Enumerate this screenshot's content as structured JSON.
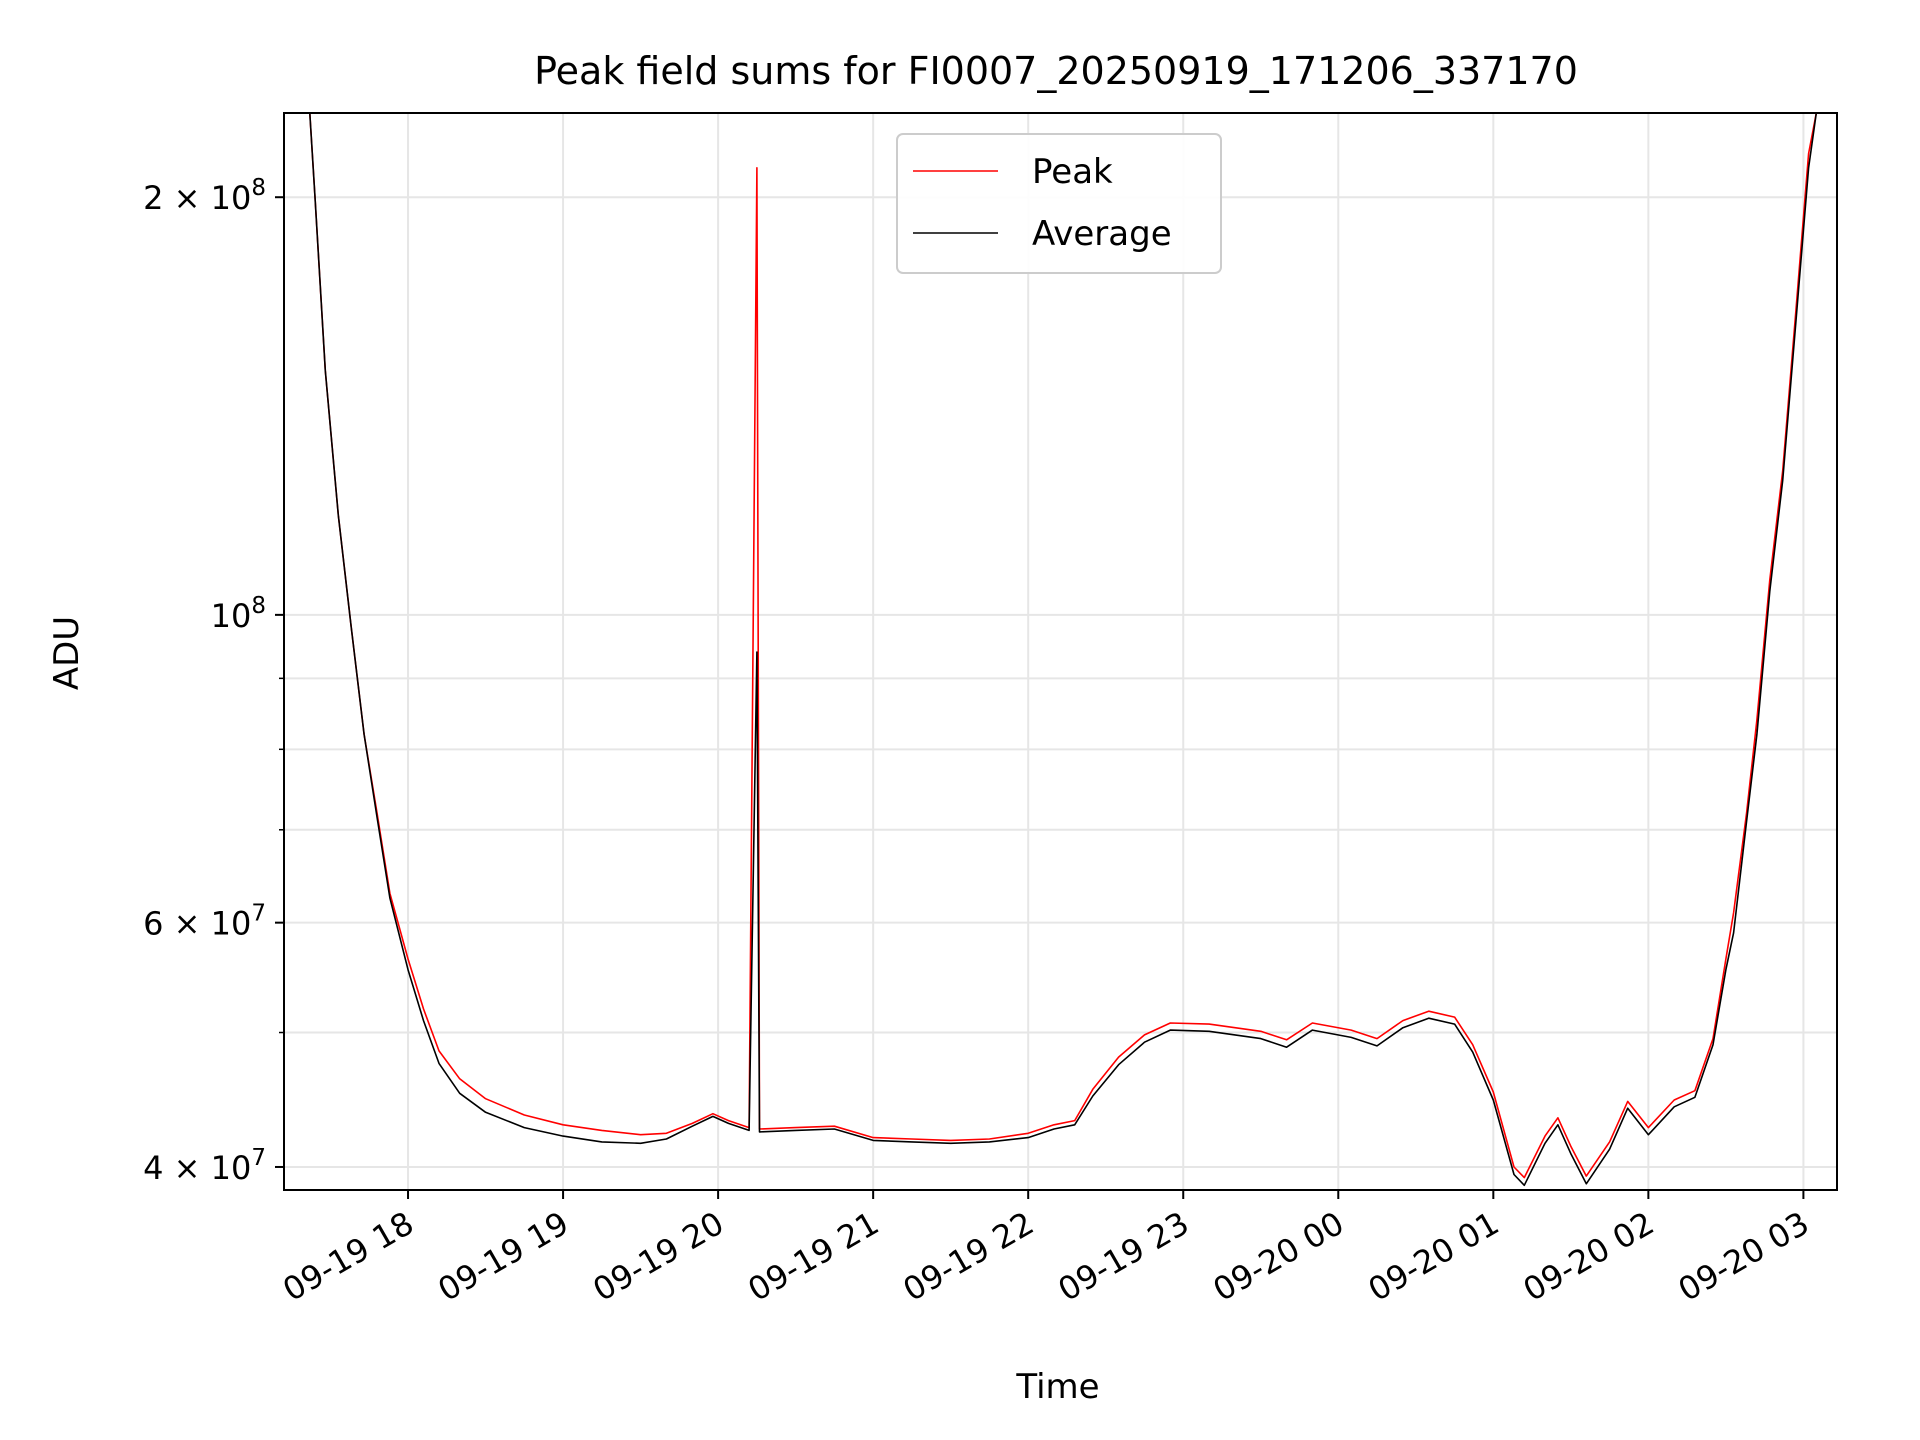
{
  "chart_data": {
    "type": "line",
    "title": "Peak field sums for FI0007_20250919_171206_337170",
    "xlabel": "Time",
    "ylabel": "ADU",
    "yscale": "log",
    "grid": true,
    "legend_position": "top-center",
    "x_range": [
      "2025-09-19 17:12",
      "2025-09-20 03:13"
    ],
    "y_range": [
      38500000,
      230000000
    ],
    "x_ticks": [
      {
        "t": "2025-09-19 18:00",
        "label": "09-19 18"
      },
      {
        "t": "2025-09-19 19:00",
        "label": "09-19 19"
      },
      {
        "t": "2025-09-19 20:00",
        "label": "09-19 20"
      },
      {
        "t": "2025-09-19 21:00",
        "label": "09-19 21"
      },
      {
        "t": "2025-09-19 22:00",
        "label": "09-19 22"
      },
      {
        "t": "2025-09-19 23:00",
        "label": "09-19 23"
      },
      {
        "t": "2025-09-20 00:00",
        "label": "09-20 00"
      },
      {
        "t": "2025-09-20 01:00",
        "label": "09-20 01"
      },
      {
        "t": "2025-09-20 02:00",
        "label": "09-20 02"
      },
      {
        "t": "2025-09-20 03:00",
        "label": "09-20 03"
      }
    ],
    "y_major_ticks": [
      {
        "v": 40000000,
        "mant": "4",
        "exp": "7"
      },
      {
        "v": 60000000,
        "mant": "6",
        "exp": "7"
      },
      {
        "v": 100000000,
        "mant": "",
        "exp": "8"
      },
      {
        "v": 200000000,
        "mant": "2",
        "exp": "8"
      }
    ],
    "y_minor_ticks": [
      50000000,
      70000000,
      80000000,
      90000000
    ],
    "series": [
      {
        "name": "Peak",
        "color": "#ff0000",
        "points": [
          [
            "2025-09-19 17:22",
            230000000
          ],
          [
            "2025-09-19 17:24",
            200000000
          ],
          [
            "2025-09-19 17:28",
            150000000
          ],
          [
            "2025-09-19 17:33",
            118000000
          ],
          [
            "2025-09-19 17:38",
            98000000
          ],
          [
            "2025-09-19 17:43",
            82000000
          ],
          [
            "2025-09-19 17:48",
            72000000
          ],
          [
            "2025-09-19 17:53",
            63000000
          ],
          [
            "2025-09-19 18:00",
            56500000
          ],
          [
            "2025-09-19 18:06",
            52000000
          ],
          [
            "2025-09-19 18:12",
            48500000
          ],
          [
            "2025-09-19 18:20",
            46300000
          ],
          [
            "2025-09-19 18:30",
            44800000
          ],
          [
            "2025-09-19 18:45",
            43600000
          ],
          [
            "2025-09-19 19:00",
            42900000
          ],
          [
            "2025-09-19 19:15",
            42500000
          ],
          [
            "2025-09-19 19:30",
            42200000
          ],
          [
            "2025-09-19 19:40",
            42300000
          ],
          [
            "2025-09-19 19:50",
            43000000
          ],
          [
            "2025-09-19 19:58",
            43700000
          ],
          [
            "2025-09-19 20:04",
            43200000
          ],
          [
            "2025-09-19 20:12",
            42700000
          ],
          [
            "2025-09-19 20:15",
            210000000
          ],
          [
            "2025-09-19 20:16",
            42600000
          ],
          [
            "2025-09-19 20:30",
            42700000
          ],
          [
            "2025-09-19 20:45",
            42800000
          ],
          [
            "2025-09-19 21:00",
            42000000
          ],
          [
            "2025-09-19 21:15",
            41900000
          ],
          [
            "2025-09-19 21:30",
            41800000
          ],
          [
            "2025-09-19 21:45",
            41900000
          ],
          [
            "2025-09-19 22:00",
            42300000
          ],
          [
            "2025-09-19 22:10",
            42900000
          ],
          [
            "2025-09-19 22:18",
            43200000
          ],
          [
            "2025-09-19 22:25",
            45500000
          ],
          [
            "2025-09-19 22:35",
            48000000
          ],
          [
            "2025-09-19 22:45",
            49800000
          ],
          [
            "2025-09-19 22:55",
            50800000
          ],
          [
            "2025-09-19 23:10",
            50700000
          ],
          [
            "2025-09-19 23:30",
            50100000
          ],
          [
            "2025-09-19 23:40",
            49400000
          ],
          [
            "2025-09-19 23:50",
            50800000
          ],
          [
            "2025-09-20 00:05",
            50200000
          ],
          [
            "2025-09-20 00:15",
            49500000
          ],
          [
            "2025-09-20 00:25",
            51000000
          ],
          [
            "2025-09-20 00:35",
            51800000
          ],
          [
            "2025-09-20 00:45",
            51300000
          ],
          [
            "2025-09-20 00:52",
            49000000
          ],
          [
            "2025-09-20 01:00",
            45300000
          ],
          [
            "2025-09-20 01:08",
            40000000
          ],
          [
            "2025-09-20 01:12",
            39300000
          ],
          [
            "2025-09-20 01:20",
            42100000
          ],
          [
            "2025-09-20 01:25",
            43400000
          ],
          [
            "2025-09-20 01:30",
            41400000
          ],
          [
            "2025-09-20 01:36",
            39400000
          ],
          [
            "2025-09-20 01:45",
            41700000
          ],
          [
            "2025-09-20 01:52",
            44600000
          ],
          [
            "2025-09-20 02:00",
            42700000
          ],
          [
            "2025-09-20 02:10",
            44700000
          ],
          [
            "2025-09-20 02:18",
            45400000
          ],
          [
            "2025-09-20 02:25",
            49500000
          ],
          [
            "2025-09-20 02:30",
            56500000
          ],
          [
            "2025-09-20 02:33",
            61000000
          ],
          [
            "2025-09-20 02:38",
            72000000
          ],
          [
            "2025-09-20 02:42",
            84000000
          ],
          [
            "2025-09-20 02:47",
            106000000
          ],
          [
            "2025-09-20 02:52",
            127000000
          ],
          [
            "2025-09-20 02:57",
            165000000
          ],
          [
            "2025-09-20 03:02",
            215000000
          ],
          [
            "2025-09-20 03:05",
            230000000
          ]
        ]
      },
      {
        "name": "Average",
        "color": "#000000",
        "points": [
          [
            "2025-09-19 17:22",
            230000000
          ],
          [
            "2025-09-19 17:24",
            200000000
          ],
          [
            "2025-09-19 17:28",
            150000000
          ],
          [
            "2025-09-19 17:33",
            118000000
          ],
          [
            "2025-09-19 17:38",
            98000000
          ],
          [
            "2025-09-19 17:43",
            82000000
          ],
          [
            "2025-09-19 17:48",
            71500000
          ],
          [
            "2025-09-19 17:53",
            62500000
          ],
          [
            "2025-09-19 18:00",
            55500000
          ],
          [
            "2025-09-19 18:06",
            51000000
          ],
          [
            "2025-09-19 18:12",
            47500000
          ],
          [
            "2025-09-19 18:20",
            45200000
          ],
          [
            "2025-09-19 18:30",
            43800000
          ],
          [
            "2025-09-19 18:45",
            42700000
          ],
          [
            "2025-09-19 19:00",
            42100000
          ],
          [
            "2025-09-19 19:15",
            41700000
          ],
          [
            "2025-09-19 19:30",
            41600000
          ],
          [
            "2025-09-19 19:40",
            41900000
          ],
          [
            "2025-09-19 19:50",
            42800000
          ],
          [
            "2025-09-19 19:58",
            43500000
          ],
          [
            "2025-09-19 20:04",
            43000000
          ],
          [
            "2025-09-19 20:12",
            42500000
          ],
          [
            "2025-09-19 20:15",
            94000000
          ],
          [
            "2025-09-19 20:16",
            42400000
          ],
          [
            "2025-09-19 20:30",
            42500000
          ],
          [
            "2025-09-19 20:45",
            42600000
          ],
          [
            "2025-09-19 21:00",
            41800000
          ],
          [
            "2025-09-19 21:15",
            41700000
          ],
          [
            "2025-09-19 21:30",
            41600000
          ],
          [
            "2025-09-19 21:45",
            41700000
          ],
          [
            "2025-09-19 22:00",
            42000000
          ],
          [
            "2025-09-19 22:10",
            42600000
          ],
          [
            "2025-09-19 22:18",
            42900000
          ],
          [
            "2025-09-19 22:25",
            45000000
          ],
          [
            "2025-09-19 22:35",
            47400000
          ],
          [
            "2025-09-19 22:45",
            49200000
          ],
          [
            "2025-09-19 22:55",
            50200000
          ],
          [
            "2025-09-19 23:10",
            50100000
          ],
          [
            "2025-09-19 23:30",
            49500000
          ],
          [
            "2025-09-19 23:40",
            48800000
          ],
          [
            "2025-09-19 23:50",
            50200000
          ],
          [
            "2025-09-20 00:05",
            49600000
          ],
          [
            "2025-09-20 00:15",
            48900000
          ],
          [
            "2025-09-20 00:25",
            50400000
          ],
          [
            "2025-09-20 00:35",
            51200000
          ],
          [
            "2025-09-20 00:45",
            50700000
          ],
          [
            "2025-09-20 00:52",
            48400000
          ],
          [
            "2025-09-20 01:00",
            44700000
          ],
          [
            "2025-09-20 01:08",
            39500000
          ],
          [
            "2025-09-20 01:12",
            38800000
          ],
          [
            "2025-09-20 01:20",
            41600000
          ],
          [
            "2025-09-20 01:25",
            42900000
          ],
          [
            "2025-09-20 01:30",
            40900000
          ],
          [
            "2025-09-20 01:36",
            38900000
          ],
          [
            "2025-09-20 01:45",
            41200000
          ],
          [
            "2025-09-20 01:52",
            44100000
          ],
          [
            "2025-09-20 02:00",
            42200000
          ],
          [
            "2025-09-20 02:10",
            44200000
          ],
          [
            "2025-09-20 02:18",
            44900000
          ],
          [
            "2025-09-20 02:25",
            49000000
          ],
          [
            "2025-09-20 02:30",
            55500000
          ],
          [
            "2025-09-20 02:33",
            59000000
          ],
          [
            "2025-09-20 02:38",
            71000000
          ],
          [
            "2025-09-20 02:42",
            82000000
          ],
          [
            "2025-09-20 02:47",
            104000000
          ],
          [
            "2025-09-20 02:52",
            125000000
          ],
          [
            "2025-09-20 02:57",
            162000000
          ],
          [
            "2025-09-20 03:02",
            210000000
          ],
          [
            "2025-09-20 03:05",
            230000000
          ]
        ]
      }
    ]
  }
}
